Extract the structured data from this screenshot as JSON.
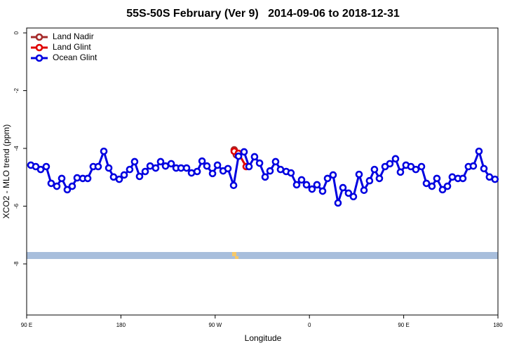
{
  "chart_data": {
    "type": "line",
    "title": "55S-50S February (Ver 9)   2014-09-06 to 2018-12-31",
    "xlabel": "Longitude",
    "ylabel": "XCO2 - MLO trend (ppm)",
    "xlim": [
      90,
      540
    ],
    "ylim": [
      -9.77,
      0.17
    ],
    "xticks": [
      {
        "value": 90,
        "label": "90 E"
      },
      180,
      {
        "value": 270,
        "label": "90 W"
      },
      {
        "value": 360,
        "label": "0"
      },
      {
        "value": 450,
        "label": "90 E"
      },
      {
        "value": 540,
        "label": "180"
      }
    ],
    "yticks": [
      0,
      -2,
      -4,
      -6,
      -8
    ],
    "legend": "upper left",
    "series": [
      {
        "name": "Land Nadir",
        "color": "#a52a2a",
        "x": [
          288.2,
          290.2
        ],
        "values": [
          -4.05,
          -4.22
        ]
      },
      {
        "name": "Land Glint",
        "color": "#e00000",
        "x": [
          288.2,
          292.2,
          299.6
        ],
        "values": [
          -4.1,
          -4.17,
          -4.63
        ]
      },
      {
        "name": "Ocean Glint",
        "color": "#0000e0",
        "x": [
          94.0,
          98.7,
          103.4,
          108.7,
          113.4,
          118.8,
          123.5,
          128.8,
          133.5,
          138.2,
          143.6,
          148.3,
          153.6,
          158.3,
          163.7,
          168.4,
          173.0,
          178.4,
          183.1,
          188.4,
          193.1,
          197.8,
          203.2,
          207.9,
          213.2,
          217.9,
          222.6,
          228.0,
          232.7,
          237.4,
          242.7,
          247.4,
          252.8,
          257.5,
          262.1,
          267.5,
          272.2,
          277.6,
          282.2,
          287.6,
          292.3,
          297.6,
          302.3,
          307.6,
          312.4,
          317.7,
          322.4,
          327.7,
          332.4,
          337.8,
          342.4,
          347.8,
          352.5,
          357.2,
          362.5,
          367.2,
          372.6,
          377.3,
          382.6,
          387.3,
          392.0,
          397.3,
          402.0,
          407.4,
          412.1,
          417.4,
          422.1,
          426.8,
          432.2,
          436.8,
          442.2,
          446.9,
          452.2,
          456.9,
          461.6,
          467.0,
          471.7,
          477.0,
          481.7,
          487.1,
          491.8,
          496.4,
          501.8,
          506.5,
          511.8,
          516.5,
          521.9,
          526.6,
          531.9,
          537.2
        ],
        "values": [
          -4.58,
          -4.63,
          -4.73,
          -4.63,
          -5.21,
          -5.31,
          -5.04,
          -5.43,
          -5.31,
          -5.02,
          -5.04,
          -5.04,
          -4.63,
          -4.63,
          -4.1,
          -4.68,
          -4.99,
          -5.07,
          -4.92,
          -4.73,
          -4.46,
          -4.97,
          -4.8,
          -4.61,
          -4.68,
          -4.46,
          -4.61,
          -4.53,
          -4.68,
          -4.68,
          -4.68,
          -4.85,
          -4.8,
          -4.44,
          -4.61,
          -4.87,
          -4.58,
          -4.78,
          -4.7,
          -5.28,
          -4.27,
          -4.12,
          -4.63,
          -4.29,
          -4.51,
          -4.99,
          -4.78,
          -4.46,
          -4.73,
          -4.8,
          -4.85,
          -5.26,
          -5.09,
          -5.26,
          -5.41,
          -5.26,
          -5.48,
          -5.04,
          -4.92,
          -5.89,
          -5.36,
          -5.55,
          -5.67,
          -4.9,
          -5.45,
          -5.12,
          -4.73,
          -5.04,
          -4.63,
          -4.53,
          -4.36,
          -4.82,
          -4.58,
          -4.63,
          -4.73,
          -4.63,
          -5.21,
          -5.31,
          -5.04,
          -5.43,
          -5.31,
          -4.99,
          -5.04,
          -5.04,
          -4.63,
          -4.61,
          -4.1,
          -4.7,
          -4.99,
          -5.07
        ]
      }
    ]
  }
}
